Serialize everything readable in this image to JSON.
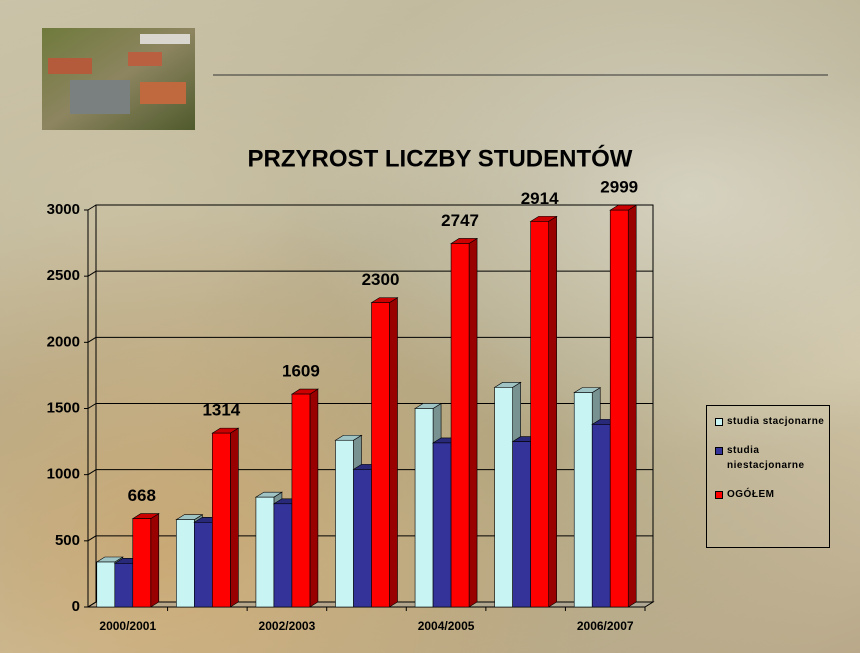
{
  "chart_data": {
    "type": "bar3d",
    "title": "PRZYROST LICZBY STUDENTÓW",
    "categories": [
      "2000/2001",
      null,
      "2002/2003",
      null,
      "2004/2005",
      null,
      "2006/2007"
    ],
    "series": [
      {
        "name": "studia stacjonarne",
        "color": "#c8f4f4",
        "values": [
          340,
          660,
          830,
          1260,
          1500,
          1660,
          1620
        ]
      },
      {
        "name": "studia niestacjonarne",
        "color": "#333399",
        "values": [
          330,
          640,
          780,
          1040,
          1240,
          1250,
          1380
        ]
      },
      {
        "name": "OGÓŁEM",
        "color": "#ff0000",
        "values": [
          668,
          1314,
          1609,
          2300,
          2747,
          2914,
          2999
        ]
      }
    ],
    "labeled_series": 2,
    "ylim": [
      0,
      3000
    ],
    "yticks": [
      0,
      500,
      1000,
      1500,
      2000,
      2500,
      3000
    ],
    "grid": true,
    "legend": "right"
  }
}
